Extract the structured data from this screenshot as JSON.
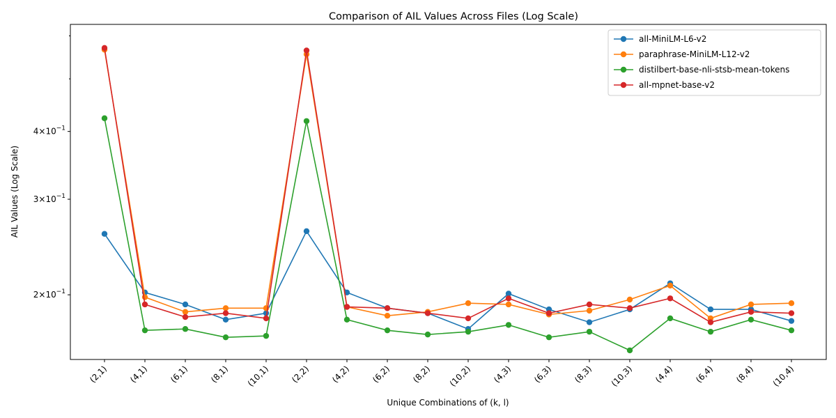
{
  "chart_data": {
    "type": "line",
    "title": "Comparison of AIL Values Across Files (Log Scale)",
    "xlabel": "Unique Combinations of (k, l)",
    "ylabel": "AIL Values (Log Scale)",
    "yscale": "log",
    "ylim": [
      0.152,
      0.63
    ],
    "grid": false,
    "legend_position": "top-right",
    "categories": [
      "(2,1)",
      "(4,1)",
      "(6,1)",
      "(8,1)",
      "(10,1)",
      "(2,2)",
      "(4,2)",
      "(6,2)",
      "(8,2)",
      "(10,2)",
      "(4,3)",
      "(6,3)",
      "(8,3)",
      "(10,3)",
      "(4,4)",
      "(6,4)",
      "(8,4)",
      "(10,4)"
    ],
    "yticks": [
      {
        "value": 0.2,
        "base": "2",
        "exp": "−1"
      },
      {
        "value": 0.3,
        "base": "3",
        "exp": "−1"
      },
      {
        "value": 0.4,
        "base": "4",
        "exp": "−1"
      }
    ],
    "yticks_minor": [
      0.5,
      0.6
    ],
    "series": [
      {
        "name": "all-MiniLM-L6-v2",
        "color": "#1f77b4",
        "values": [
          0.259,
          0.202,
          0.192,
          0.18,
          0.185,
          0.262,
          0.202,
          0.189,
          0.185,
          0.173,
          0.201,
          0.188,
          0.178,
          0.188,
          0.21,
          0.188,
          0.188,
          0.179
        ]
      },
      {
        "name": "paraphrase-MiniLM-L12-v2",
        "color": "#ff7f0e",
        "values": [
          0.566,
          0.198,
          0.186,
          0.189,
          0.189,
          0.555,
          0.19,
          0.183,
          0.186,
          0.193,
          0.192,
          0.184,
          0.187,
          0.196,
          0.208,
          0.181,
          0.192,
          0.193
        ]
      },
      {
        "name": "distilbert-base-nli-stsb-mean-tokens",
        "color": "#2ca02c",
        "values": [
          0.423,
          0.172,
          0.173,
          0.167,
          0.168,
          0.418,
          0.18,
          0.172,
          0.169,
          0.171,
          0.176,
          0.167,
          0.171,
          0.158,
          0.181,
          0.171,
          0.18,
          0.172
        ]
      },
      {
        "name": "all-mpnet-base-v2",
        "color": "#d62728",
        "values": [
          0.57,
          0.192,
          0.182,
          0.185,
          0.181,
          0.564,
          0.19,
          0.189,
          0.185,
          0.181,
          0.197,
          0.185,
          0.192,
          0.189,
          0.197,
          0.178,
          0.186,
          0.185
        ]
      }
    ]
  }
}
